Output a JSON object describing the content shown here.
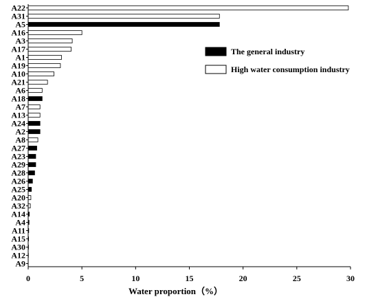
{
  "chart_data": {
    "type": "bar",
    "orientation": "horizontal",
    "title": "",
    "xlabel": "Water proportion（%）",
    "ylabel": "",
    "xlim": [
      0,
      30
    ],
    "xticks": [
      "0",
      "5",
      "10",
      "15",
      "20",
      "25",
      "30"
    ],
    "grid": false,
    "legend_position": "top-right",
    "series": [
      {
        "name": "The general industry",
        "color": "#000000"
      },
      {
        "name": "High water consumption industry",
        "color": "#ffffff"
      }
    ],
    "categories": [
      "A22",
      "A31",
      "A5",
      "A16",
      "A3",
      "A17",
      "A1",
      "A19",
      "A10",
      "A21",
      "A6",
      "A18",
      "A7",
      "A13",
      "A24",
      "A2",
      "A8",
      "A27",
      "A23",
      "A29",
      "A28",
      "A26",
      "A25",
      "A20",
      "A32",
      "A14",
      "A4",
      "A11",
      "A15",
      "A30",
      "A12",
      "A9"
    ],
    "values": [
      29.8,
      17.8,
      17.8,
      5.0,
      4.1,
      4.0,
      3.1,
      3.0,
      2.4,
      1.8,
      1.3,
      1.3,
      1.1,
      1.1,
      1.1,
      1.1,
      0.9,
      0.8,
      0.7,
      0.7,
      0.6,
      0.4,
      0.3,
      0.25,
      0.2,
      0.1,
      0.08,
      0.05,
      0.04,
      0.03,
      0.02,
      0.0
    ],
    "groups": [
      "high",
      "high",
      "general",
      "high",
      "high",
      "high",
      "high",
      "high",
      "high",
      "high",
      "high",
      "general",
      "high",
      "high",
      "general",
      "general",
      "high",
      "general",
      "general",
      "general",
      "general",
      "general",
      "general",
      "high",
      "high",
      "general",
      "general",
      "general",
      "general",
      "general",
      "general",
      "general"
    ]
  }
}
